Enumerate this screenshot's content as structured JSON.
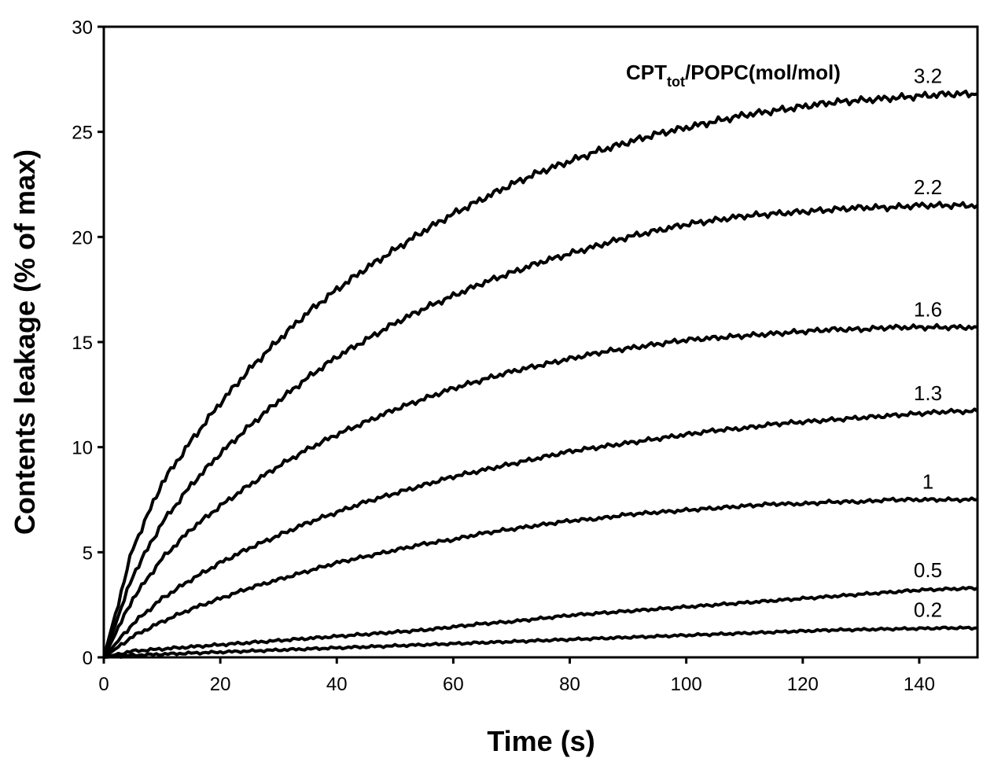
{
  "chart_data": {
    "type": "line",
    "title": "",
    "xlabel": "Time (s)",
    "ylabel": "Contents leakage (% of max)",
    "xlim": [
      0,
      150
    ],
    "ylim": [
      0,
      30
    ],
    "xticks": [
      0,
      20,
      40,
      60,
      80,
      100,
      120,
      140
    ],
    "yticks": [
      0,
      5,
      10,
      15,
      20,
      25,
      30
    ],
    "grid": false,
    "legend": {
      "title_main": "CPT",
      "title_sub": "tot",
      "title_rest": "/POPC(mol/mol)",
      "placement": "top-right"
    },
    "series": [
      {
        "name": "3.2",
        "final": 26.8,
        "tau": 55,
        "shape": "fast"
      },
      {
        "name": "2.2",
        "final": 21.5,
        "tau": 50,
        "shape": "fast"
      },
      {
        "name": "1.6",
        "final": 15.7,
        "tau": 48,
        "shape": "fast"
      },
      {
        "name": "1.3",
        "final": 11.7,
        "tau": 55,
        "shape": "medium"
      },
      {
        "name": "1",
        "final": 7.5,
        "tau": 60,
        "shape": "medium"
      },
      {
        "name": "0.5",
        "final": 3.3,
        "tau": 100,
        "shape": "slow"
      },
      {
        "name": "0.2",
        "final": 1.4,
        "tau": 90,
        "shape": "slow"
      }
    ],
    "x": [
      0,
      5,
      10,
      15,
      20,
      25,
      30,
      35,
      40,
      45,
      50,
      55,
      60,
      65,
      70,
      75,
      80,
      85,
      90,
      95,
      100,
      105,
      110,
      115,
      120,
      125,
      130,
      135,
      140,
      145,
      150
    ],
    "values": {
      "3.2": [
        0,
        5.2,
        8.3,
        10.3,
        12.1,
        13.7,
        15.1,
        16.4,
        17.5,
        18.5,
        19.4,
        20.3,
        21.1,
        21.8,
        22.5,
        23.1,
        23.6,
        24.1,
        24.5,
        24.9,
        25.2,
        25.5,
        25.8,
        26.0,
        26.2,
        26.4,
        26.5,
        26.6,
        26.7,
        26.8,
        26.8
      ],
      "2.2": [
        0,
        3.9,
        6.4,
        8.2,
        9.7,
        11.0,
        12.2,
        13.3,
        14.3,
        15.1,
        15.9,
        16.6,
        17.2,
        17.8,
        18.3,
        18.8,
        19.2,
        19.6,
        20.0,
        20.3,
        20.6,
        20.8,
        21.0,
        21.1,
        21.2,
        21.3,
        21.4,
        21.4,
        21.5,
        21.5,
        21.5
      ],
      "1.6": [
        0,
        2.8,
        4.7,
        6.1,
        7.2,
        8.2,
        9.1,
        9.9,
        10.6,
        11.2,
        11.8,
        12.3,
        12.8,
        13.2,
        13.6,
        13.9,
        14.2,
        14.5,
        14.7,
        14.9,
        15.1,
        15.2,
        15.3,
        15.4,
        15.5,
        15.6,
        15.6,
        15.7,
        15.7,
        15.7,
        15.7
      ],
      "1.3": [
        0,
        1.6,
        2.8,
        3.7,
        4.5,
        5.2,
        5.8,
        6.4,
        6.9,
        7.4,
        7.8,
        8.2,
        8.6,
        8.9,
        9.2,
        9.5,
        9.8,
        10.0,
        10.2,
        10.4,
        10.6,
        10.8,
        10.9,
        11.1,
        11.2,
        11.3,
        11.4,
        11.5,
        11.6,
        11.7,
        11.7
      ],
      "1": [
        0,
        1.0,
        1.7,
        2.3,
        2.8,
        3.3,
        3.7,
        4.1,
        4.5,
        4.8,
        5.1,
        5.4,
        5.6,
        5.9,
        6.1,
        6.3,
        6.5,
        6.6,
        6.8,
        6.9,
        7.0,
        7.1,
        7.2,
        7.3,
        7.3,
        7.4,
        7.4,
        7.5,
        7.5,
        7.5,
        7.5
      ],
      "0.5": [
        0,
        0.3,
        0.4,
        0.5,
        0.6,
        0.7,
        0.8,
        0.9,
        1.0,
        1.1,
        1.2,
        1.3,
        1.45,
        1.6,
        1.7,
        1.85,
        2.0,
        2.1,
        2.2,
        2.3,
        2.4,
        2.5,
        2.6,
        2.7,
        2.8,
        2.9,
        3.0,
        3.1,
        3.2,
        3.25,
        3.3
      ],
      "0.2": [
        0,
        0.1,
        0.15,
        0.2,
        0.25,
        0.3,
        0.35,
        0.4,
        0.45,
        0.5,
        0.55,
        0.6,
        0.65,
        0.7,
        0.75,
        0.8,
        0.85,
        0.9,
        0.95,
        1.0,
        1.05,
        1.1,
        1.15,
        1.2,
        1.25,
        1.3,
        1.32,
        1.35,
        1.37,
        1.4,
        1.4
      ]
    }
  }
}
